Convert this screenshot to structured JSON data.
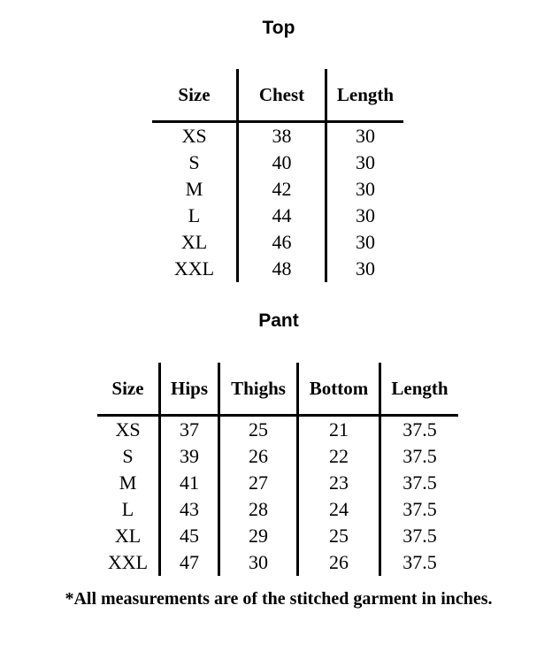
{
  "top": {
    "title": "Top",
    "headers": [
      "Size",
      "Chest",
      "Length"
    ],
    "rows": [
      [
        "XS",
        "38",
        "30"
      ],
      [
        "S",
        "40",
        "30"
      ],
      [
        "M",
        "42",
        "30"
      ],
      [
        "L",
        "44",
        "30"
      ],
      [
        "XL",
        "46",
        "30"
      ],
      [
        "XXL",
        "48",
        "30"
      ]
    ]
  },
  "pant": {
    "title": "Pant",
    "headers": [
      "Size",
      "Hips",
      "Thighs",
      "Bottom",
      "Length"
    ],
    "rows": [
      [
        "XS",
        "37",
        "25",
        "21",
        "37.5"
      ],
      [
        "S",
        "39",
        "26",
        "22",
        "37.5"
      ],
      [
        "M",
        "41",
        "27",
        "23",
        "37.5"
      ],
      [
        "L",
        "43",
        "28",
        "24",
        "37.5"
      ],
      [
        "XL",
        "45",
        "29",
        "25",
        "37.5"
      ],
      [
        "XXL",
        "47",
        "30",
        "26",
        "37.5"
      ]
    ]
  },
  "footnote": "*All measurements are of the stitched garment in inches."
}
